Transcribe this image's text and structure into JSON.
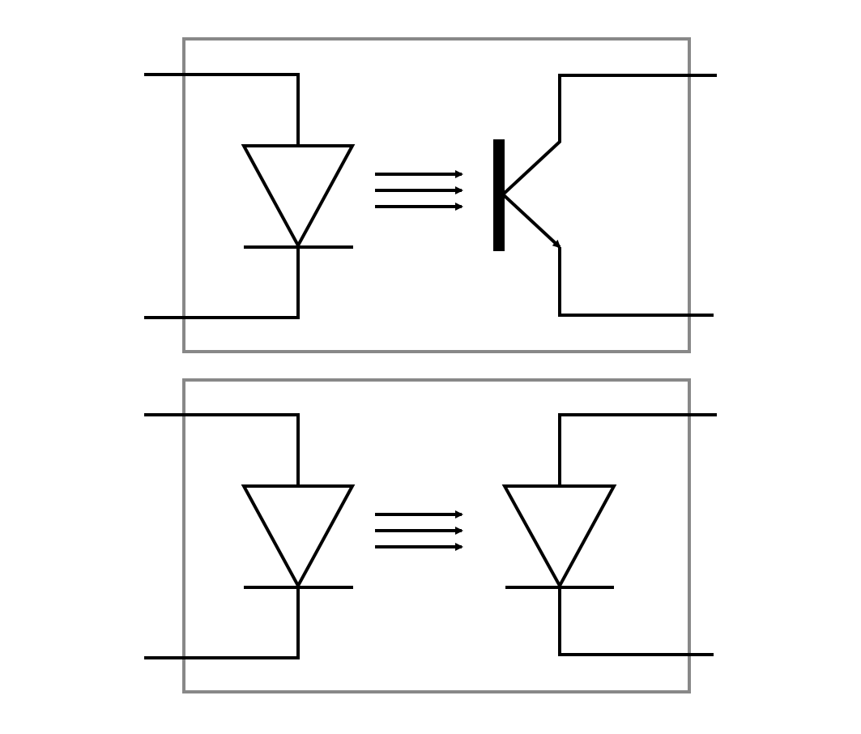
{
  "diagram": {
    "colors": {
      "background": "#ffffff",
      "stroke": "#000000",
      "enclosure": "#888888"
    },
    "optocouplers": [
      {
        "emitter": "led-diode",
        "light_path": "three-arrows",
        "receiver": "phototransistor"
      },
      {
        "emitter": "led-diode",
        "light_path": "three-arrows",
        "receiver": "photodiode"
      }
    ]
  }
}
